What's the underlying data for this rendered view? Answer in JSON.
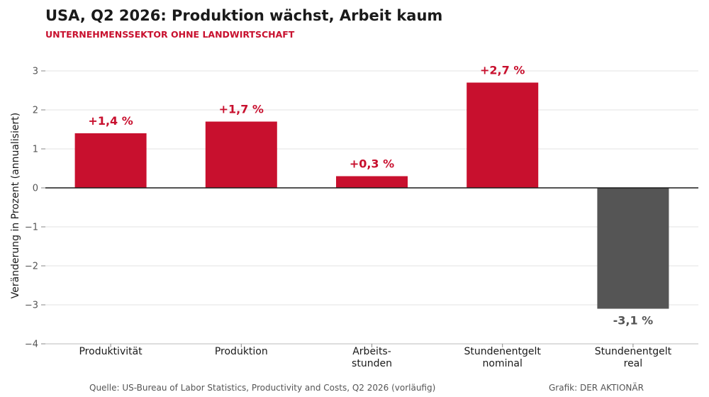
{
  "header": {
    "title": "USA, Q2 2026: Produktion wächst, Arbeit kaum",
    "subtitle": "UNTERNEHMENSSEKTOR OHNE LANDWIRTSCHAFT"
  },
  "footer": {
    "source": "Quelle: US-Bureau of Labor Statistics, Productivity and Costs, Q2 2026 (vorläufig)",
    "credit": "Grafik: DER AKTIONÄR"
  },
  "colors": {
    "positive": "#c8102e",
    "negative": "#555555",
    "grid": "#e3e3e3",
    "zero_line": "#1a1a1a"
  },
  "chart_data": {
    "type": "bar",
    "title": "USA, Q2 2026: Produktion wächst, Arbeit kaum",
    "subtitle": "UNTERNEHMENSSEKTOR OHNE LANDWIRTSCHAFT",
    "xlabel": "",
    "ylabel": "Veränderung in Prozent (annualisiert)",
    "ylim": [
      -4,
      3.5
    ],
    "yticks": [
      3,
      2,
      1,
      0,
      -1,
      -2,
      -3,
      -4
    ],
    "ytick_labels": [
      "3",
      "2",
      "1",
      "0",
      "−1",
      "−2",
      "−3",
      "−4"
    ],
    "grid": true,
    "categories": [
      [
        "Produktivität"
      ],
      [
        "Produktion"
      ],
      [
        "Arbeits-",
        "stunden"
      ],
      [
        "Stundenentgelt",
        "nominal"
      ],
      [
        "Stundenentgelt",
        "real"
      ]
    ],
    "values": [
      1.4,
      1.7,
      0.3,
      2.7,
      -3.1
    ],
    "data_labels": [
      "+1,4 %",
      "+1,7 %",
      "+0,3 %",
      "+2,7 %",
      "-3,1 %"
    ]
  }
}
